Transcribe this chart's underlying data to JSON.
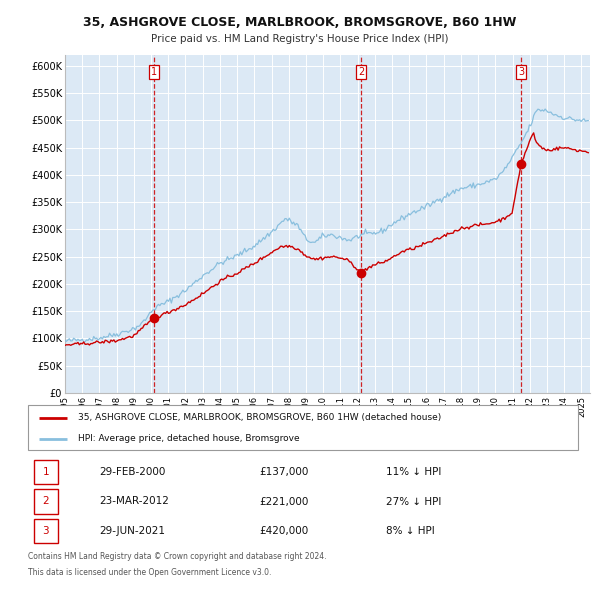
{
  "title": "35, ASHGROVE CLOSE, MARLBROOK, BROMSGROVE, B60 1HW",
  "subtitle": "Price paid vs. HM Land Registry's House Price Index (HPI)",
  "hpi_color": "#89bfde",
  "price_color": "#cc0000",
  "bg_color": "#dce9f5",
  "grid_color": "#ffffff",
  "ylim": [
    0,
    620000
  ],
  "yticks": [
    0,
    50000,
    100000,
    150000,
    200000,
    250000,
    300000,
    350000,
    400000,
    450000,
    500000,
    550000,
    600000
  ],
  "ytick_labels": [
    "£0",
    "£50K",
    "£100K",
    "£150K",
    "£200K",
    "£250K",
    "£300K",
    "£350K",
    "£400K",
    "£450K",
    "£500K",
    "£550K",
    "£600K"
  ],
  "xlim_start": 1995.0,
  "xlim_end": 2025.5,
  "xticks": [
    1995,
    1996,
    1997,
    1998,
    1999,
    2000,
    2001,
    2002,
    2003,
    2004,
    2005,
    2006,
    2007,
    2008,
    2009,
    2010,
    2011,
    2012,
    2013,
    2014,
    2015,
    2016,
    2017,
    2018,
    2019,
    2020,
    2021,
    2022,
    2023,
    2024,
    2025
  ],
  "sale_dates": [
    2000.16,
    2012.22,
    2021.49
  ],
  "sale_prices": [
    137000,
    221000,
    420000
  ],
  "sale_labels": [
    "1",
    "2",
    "3"
  ],
  "legend_line1": "35, ASHGROVE CLOSE, MARLBROOK, BROMSGROVE, B60 1HW (detached house)",
  "legend_line2": "HPI: Average price, detached house, Bromsgrove",
  "table_rows": [
    {
      "num": "1",
      "date": "29-FEB-2000",
      "price": "£137,000",
      "hpi": "11% ↓ HPI"
    },
    {
      "num": "2",
      "date": "23-MAR-2012",
      "price": "£221,000",
      "hpi": "27% ↓ HPI"
    },
    {
      "num": "3",
      "date": "29-JUN-2021",
      "price": "£420,000",
      "hpi": "8% ↓ HPI"
    }
  ],
  "footnote1": "Contains HM Land Registry data © Crown copyright and database right 2024.",
  "footnote2": "This data is licensed under the Open Government Licence v3.0."
}
